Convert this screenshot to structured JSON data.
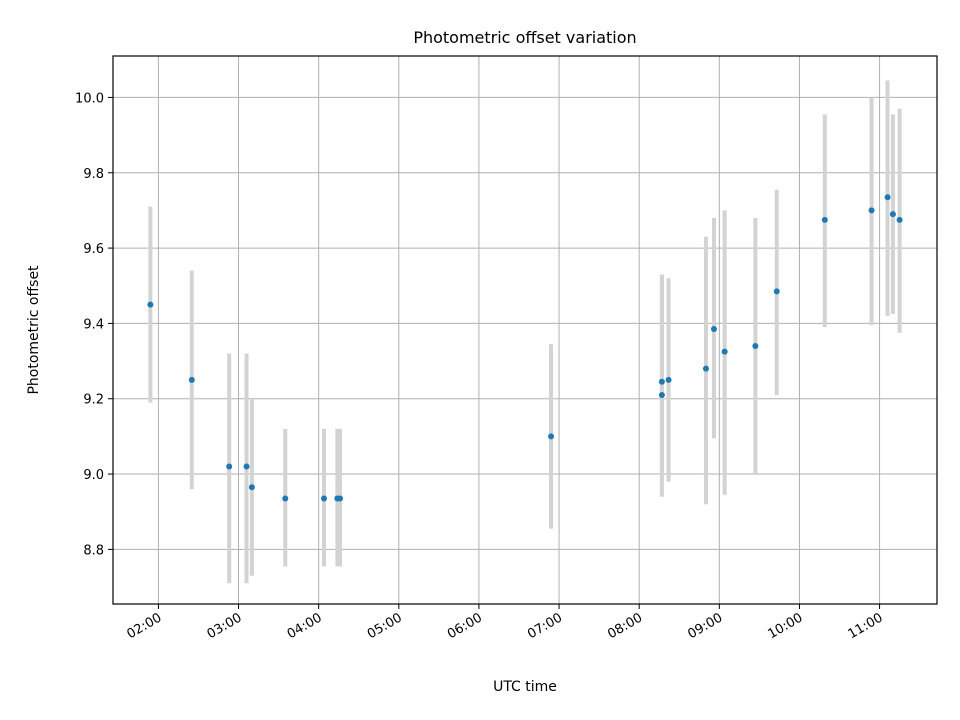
{
  "chart_data": {
    "type": "scatter",
    "title": "Photometric offset variation",
    "xlabel": "UTC time",
    "ylabel": "Photometric offset",
    "x_axis_type": "time",
    "xlim": [
      "01:26",
      "11:43"
    ],
    "ylim": [
      8.655,
      10.11
    ],
    "x_ticks": [
      "02:00",
      "03:00",
      "04:00",
      "05:00",
      "06:00",
      "07:00",
      "08:00",
      "09:00",
      "10:00",
      "11:00"
    ],
    "y_ticks": [
      "8.8",
      "9.0",
      "9.2",
      "9.4",
      "9.6",
      "9.8",
      "10.0"
    ],
    "grid": true,
    "legend": "none",
    "colors": {
      "points": "#1f77b4",
      "errorbars": "#d3d3d3",
      "grid": "#b0b0b0",
      "frame": "#000000"
    },
    "series": [
      {
        "points": [
          {
            "x": "01:54",
            "y": 9.45,
            "lo": 9.19,
            "hi": 9.71
          },
          {
            "x": "02:25",
            "y": 9.25,
            "lo": 8.96,
            "hi": 9.54
          },
          {
            "x": "02:53",
            "y": 9.02,
            "lo": 8.71,
            "hi": 9.32
          },
          {
            "x": "03:06",
            "y": 9.02,
            "lo": 8.71,
            "hi": 9.32
          },
          {
            "x": "03:10",
            "y": 8.965,
            "lo": 8.73,
            "hi": 9.2
          },
          {
            "x": "03:35",
            "y": 8.935,
            "lo": 8.755,
            "hi": 9.12
          },
          {
            "x": "04:04",
            "y": 8.935,
            "lo": 8.755,
            "hi": 9.12
          },
          {
            "x": "04:14",
            "y": 8.935,
            "lo": 8.755,
            "hi": 9.12
          },
          {
            "x": "04:16",
            "y": 8.935,
            "lo": 8.755,
            "hi": 9.12
          },
          {
            "x": "06:54",
            "y": 9.1,
            "lo": 8.855,
            "hi": 9.345
          },
          {
            "x": "08:17",
            "y": 9.21,
            "lo": 8.94,
            "hi": 9.53
          },
          {
            "x": "08:17",
            "y": 9.245,
            "lo": 8.97,
            "hi": 9.53
          },
          {
            "x": "08:22",
            "y": 9.25,
            "lo": 8.98,
            "hi": 9.52
          },
          {
            "x": "08:50",
            "y": 9.28,
            "lo": 8.92,
            "hi": 9.63
          },
          {
            "x": "08:56",
            "y": 9.385,
            "lo": 9.095,
            "hi": 9.68
          },
          {
            "x": "09:04",
            "y": 9.325,
            "lo": 8.945,
            "hi": 9.7
          },
          {
            "x": "09:27",
            "y": 9.34,
            "lo": 9.0,
            "hi": 9.68
          },
          {
            "x": "09:43",
            "y": 9.485,
            "lo": 9.21,
            "hi": 9.755
          },
          {
            "x": "10:19",
            "y": 9.675,
            "lo": 9.39,
            "hi": 9.955
          },
          {
            "x": "10:54",
            "y": 9.7,
            "lo": 9.395,
            "hi": 10.0
          },
          {
            "x": "11:06",
            "y": 9.735,
            "lo": 9.42,
            "hi": 10.045
          },
          {
            "x": "11:10",
            "y": 9.69,
            "lo": 9.425,
            "hi": 9.955
          },
          {
            "x": "11:15",
            "y": 9.675,
            "lo": 9.375,
            "hi": 9.97
          }
        ]
      }
    ]
  }
}
